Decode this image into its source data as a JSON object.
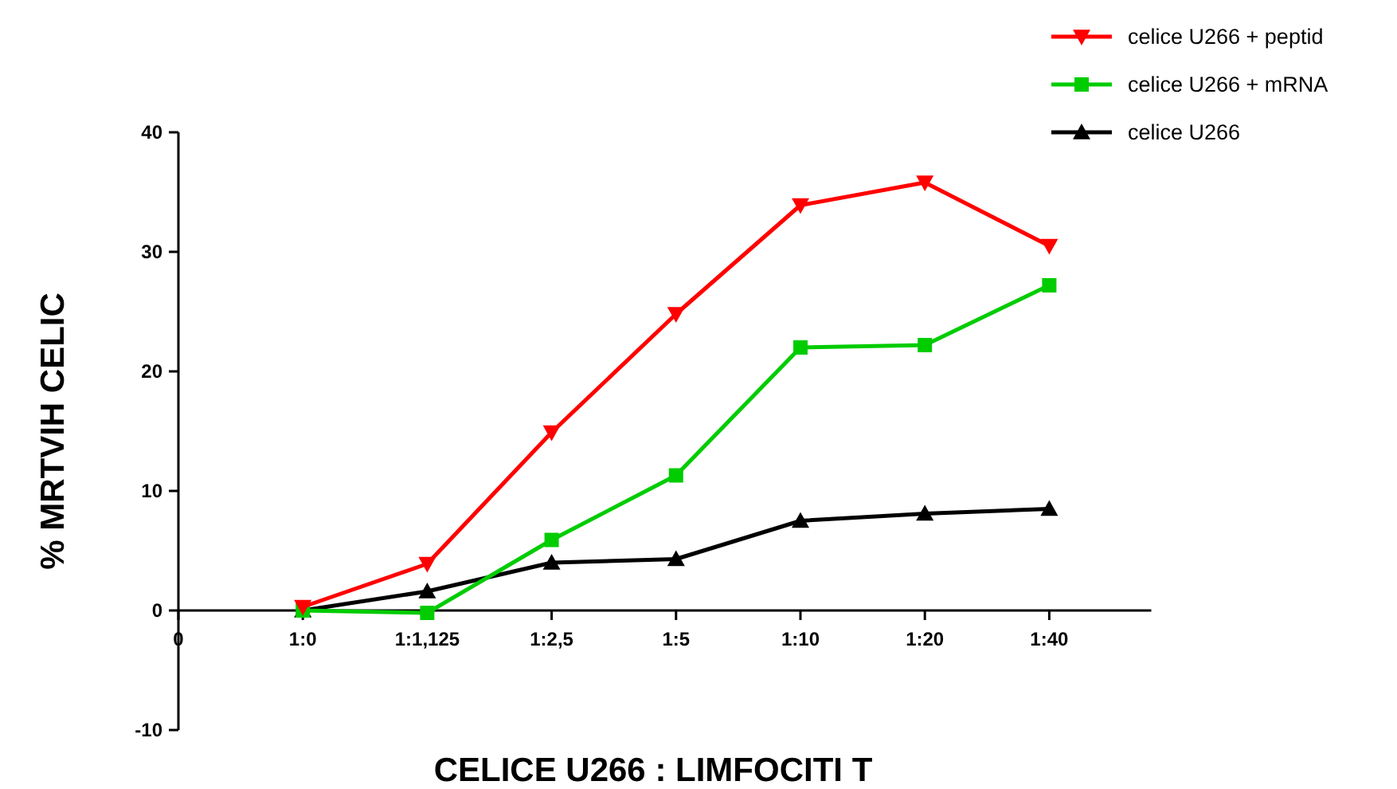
{
  "chart_data": {
    "type": "line",
    "xlabel": "CELICE U266 : LIMFOCITI T",
    "ylabel": "% MRTVIH CELIC",
    "categories": [
      "0",
      "1:0",
      "1:1,125",
      "1:2,5",
      "1:5",
      "1:10",
      "1:20",
      "1:40"
    ],
    "ylim": [
      -10,
      40
    ],
    "yticks": [
      -10,
      0,
      10,
      20,
      30,
      40
    ],
    "grid": false,
    "legend": "top right",
    "line_style": "solid",
    "series": [
      {
        "name": "celice U266 + peptid",
        "color": "#ff0000",
        "marker": "triangle-down",
        "values": [
          null,
          0.3,
          3.9,
          14.9,
          24.8,
          33.9,
          35.8,
          30.5
        ]
      },
      {
        "name": "celice U266 + mRNA",
        "color": "#00cc00",
        "marker": "square",
        "values": [
          null,
          0,
          -0.2,
          5.9,
          11.3,
          22,
          22.2,
          27.2
        ]
      },
      {
        "name": "celice U266",
        "color": "#000000",
        "marker": "triangle",
        "values": [
          null,
          0,
          1.6,
          4,
          4.3,
          7.5,
          8.1,
          8.5
        ]
      }
    ]
  }
}
